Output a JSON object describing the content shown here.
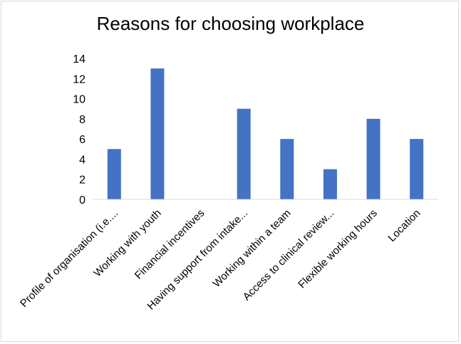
{
  "chart_data": {
    "type": "bar",
    "title": "Reasons for choosing workplace",
    "categories": [
      "Profile of organisation (i.e....",
      "Working with youth",
      "Financial incentives",
      "Having support from intake...",
      "Working within a team",
      "Access to clinical review...",
      "Flexible working hours",
      "Location"
    ],
    "values": [
      5,
      13,
      0,
      9,
      6,
      3,
      8,
      6
    ],
    "ylim": [
      0,
      14
    ],
    "yticks": [
      0,
      2,
      4,
      6,
      8,
      10,
      12,
      14
    ],
    "xlabel": "",
    "ylabel": "",
    "grid": false,
    "legend": "none",
    "bar_color": "#4472c4",
    "axis_color": "#d9d9d9"
  }
}
